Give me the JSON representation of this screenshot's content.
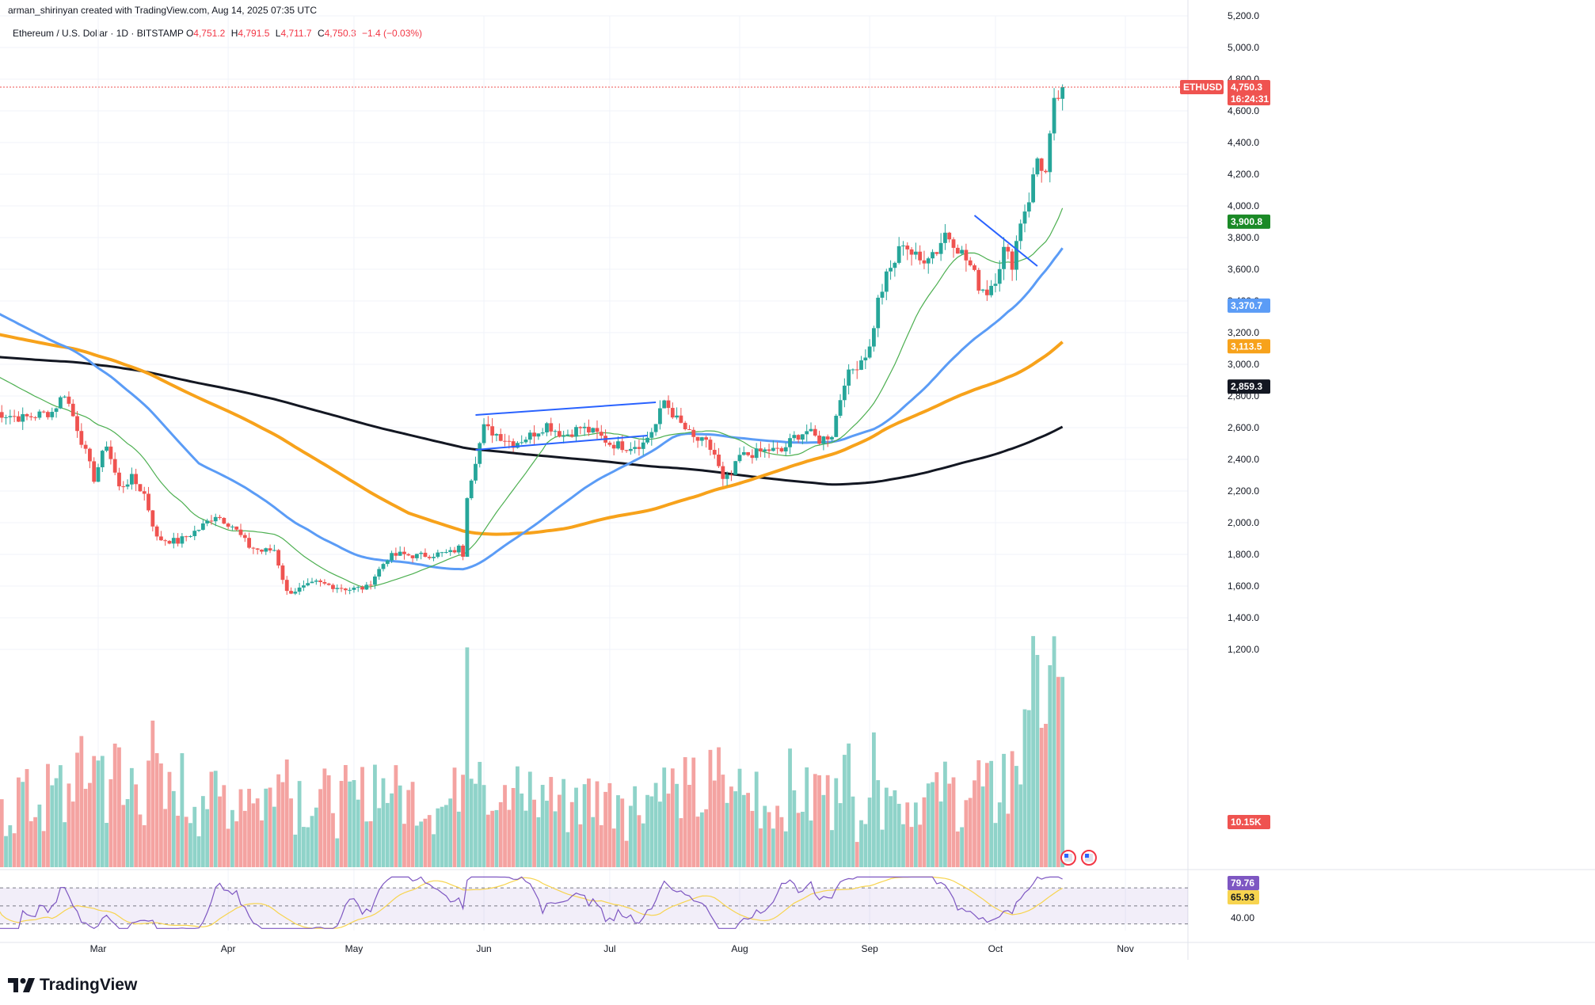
{
  "header": {
    "credit": "arman_shirinyan created with TradingView.com, Aug 14, 2025 07:35 UTC"
  },
  "symbol": {
    "name": "Ethereum / U.S. Dollar · 1D · BITSTAMP",
    "open_label": "O",
    "open": "4,751.2",
    "high_label": "H",
    "high": "4,791.5",
    "low_label": "L",
    "low": "4,711.7",
    "close_label": "C",
    "close": "4,750.3",
    "change": "−1.4 (−0.03%)"
  },
  "branding": {
    "logo_text": "TradingView"
  },
  "colors": {
    "up": "#26a69a",
    "down": "#ef5350",
    "vol_up": "#8fd3c9",
    "vol_down": "#f4a3a1",
    "ma_fast": "#4caf50",
    "ma_blue": "#5b9cf6",
    "ma_orange": "#f7a21b",
    "ma_black": "#131722",
    "trendline": "#2962ff",
    "rsi": "#7e57c2",
    "rsi_ma": "#f7d44f"
  },
  "chart_data": {
    "type": "candlestick",
    "title": "Ethereum / U.S. Dollar · 1D · BITSTAMP",
    "ylim": [
      1100,
      5250
    ],
    "y_ticks": [
      "1,200.0",
      "1,400.0",
      "1,600.0",
      "1,800.0",
      "2,000.0",
      "2,200.0",
      "2,400.0",
      "2,600.0",
      "2,800.0",
      "3,000.0",
      "3,200.0",
      "3,400.0",
      "3,600.0",
      "3,800.0",
      "4,000.0",
      "4,200.0",
      "4,400.0",
      "4,600.0",
      "4,800.0",
      "5,000.0",
      "5,200.0"
    ],
    "x_ticks": [
      "Mar",
      "Apr",
      "May",
      "Jun",
      "Jul",
      "Aug",
      "Sep",
      "Oct",
      "Nov"
    ],
    "start_date": "2025-02-04",
    "price_anchors": [
      [
        0,
        2700
      ],
      [
        7,
        2660
      ],
      [
        14,
        2700
      ],
      [
        17,
        2820
      ],
      [
        20,
        2600
      ],
      [
        24,
        2280
      ],
      [
        27,
        2500
      ],
      [
        30,
        2220
      ],
      [
        33,
        2280
      ],
      [
        36,
        2180
      ],
      [
        39,
        1900
      ],
      [
        44,
        1880
      ],
      [
        49,
        1960
      ],
      [
        53,
        2050
      ],
      [
        57,
        1980
      ],
      [
        61,
        1850
      ],
      [
        64,
        1820
      ],
      [
        67,
        1830
      ],
      [
        70,
        1560
      ],
      [
        73,
        1580
      ],
      [
        77,
        1620
      ],
      [
        81,
        1600
      ],
      [
        85,
        1580
      ],
      [
        89,
        1590
      ],
      [
        94,
        1780
      ],
      [
        97,
        1800
      ],
      [
        101,
        1790
      ],
      [
        105,
        1800
      ],
      [
        109,
        1810
      ],
      [
        111,
        1840
      ],
      [
        112,
        1800
      ],
      [
        113,
        2180
      ],
      [
        115,
        2400
      ],
      [
        117,
        2600
      ],
      [
        120,
        2560
      ],
      [
        124,
        2500
      ],
      [
        128,
        2550
      ],
      [
        132,
        2620
      ],
      [
        136,
        2550
      ],
      [
        140,
        2600
      ],
      [
        144,
        2560
      ],
      [
        147,
        2500
      ],
      [
        151,
        2480
      ],
      [
        155,
        2500
      ],
      [
        158,
        2620
      ],
      [
        160,
        2770
      ],
      [
        163,
        2650
      ],
      [
        167,
        2530
      ],
      [
        170,
        2500
      ],
      [
        172,
        2430
      ],
      [
        174,
        2260
      ],
      [
        176,
        2300
      ],
      [
        178,
        2420
      ],
      [
        182,
        2440
      ],
      [
        185,
        2460
      ],
      [
        188,
        2450
      ],
      [
        191,
        2540
      ],
      [
        194,
        2580
      ],
      [
        197,
        2520
      ],
      [
        200,
        2560
      ],
      [
        203,
        2900
      ],
      [
        206,
        3000
      ],
      [
        209,
        3100
      ],
      [
        211,
        3400
      ],
      [
        213,
        3550
      ],
      [
        215,
        3650
      ],
      [
        217,
        3780
      ],
      [
        219,
        3700
      ],
      [
        221,
        3650
      ],
      [
        223,
        3700
      ],
      [
        225,
        3720
      ],
      [
        227,
        3830
      ],
      [
        229,
        3780
      ],
      [
        231,
        3700
      ],
      [
        233,
        3620
      ],
      [
        235,
        3500
      ],
      [
        237,
        3460
      ],
      [
        239,
        3550
      ],
      [
        241,
        3720
      ],
      [
        243,
        3640
      ],
      [
        245,
        3910
      ],
      [
        247,
        4050
      ],
      [
        249,
        4300
      ],
      [
        251,
        4200
      ],
      [
        253,
        4630
      ],
      [
        255,
        4750
      ]
    ],
    "overlays": [
      {
        "name": "SMA fast",
        "last": "3,900.8",
        "color": "#4caf50"
      },
      {
        "name": "SMA blue",
        "last": "3,370.7",
        "color": "#5b9cf6"
      },
      {
        "name": "SMA orange",
        "last": "3,113.5",
        "color": "#f7a21b"
      },
      {
        "name": "SMA black",
        "last": "2,859.3",
        "color": "#131722"
      }
    ],
    "last_price_tag": {
      "symbol": "ETHUSD",
      "price": "4,750.3",
      "countdown": "16:24:31"
    },
    "volume_last": "10.15K",
    "rsi": {
      "value": "79.76",
      "ma": "65.93",
      "level": "40.00",
      "upper": 70,
      "lower": 30
    }
  }
}
